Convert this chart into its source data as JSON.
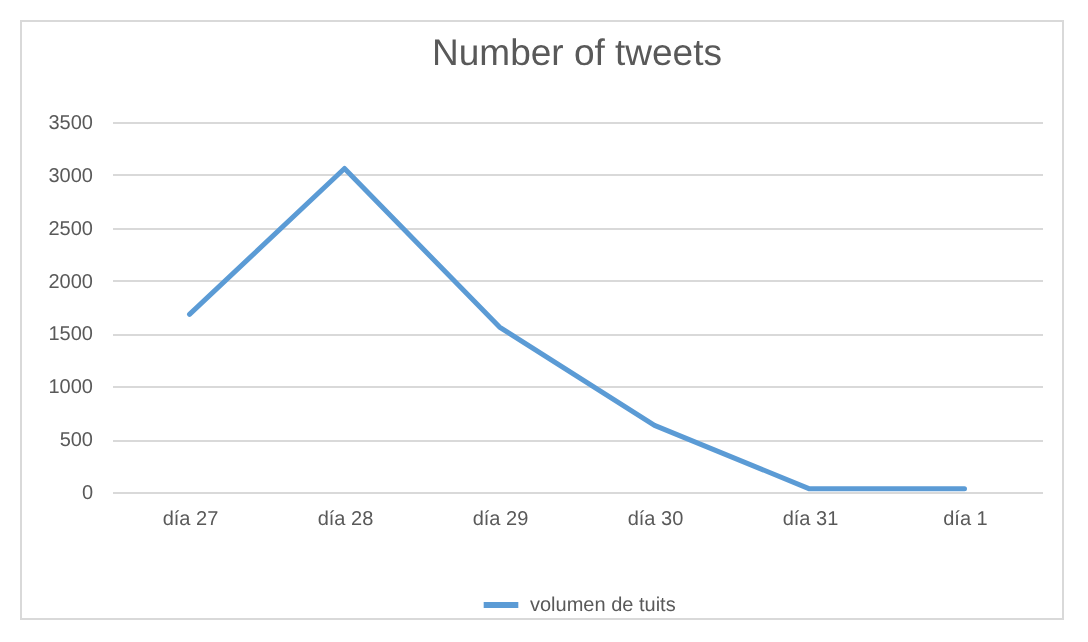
{
  "chart_data": {
    "type": "line",
    "title": "Number of tweets",
    "categories": [
      "día 27",
      "día 28",
      "día 29",
      "día 30",
      "día 31",
      "día 1"
    ],
    "series": [
      {
        "name": "volumen de tuits",
        "color": "#5b9bd5",
        "values": [
          1680,
          3060,
          1560,
          630,
          30,
          30
        ]
      }
    ],
    "ylim": [
      0,
      3500
    ],
    "yticks": [
      0,
      500,
      1000,
      1500,
      2000,
      2500,
      3000,
      3500
    ],
    "grid": "y",
    "legend": "bottom",
    "marker": "none",
    "line_style": "solid"
  }
}
